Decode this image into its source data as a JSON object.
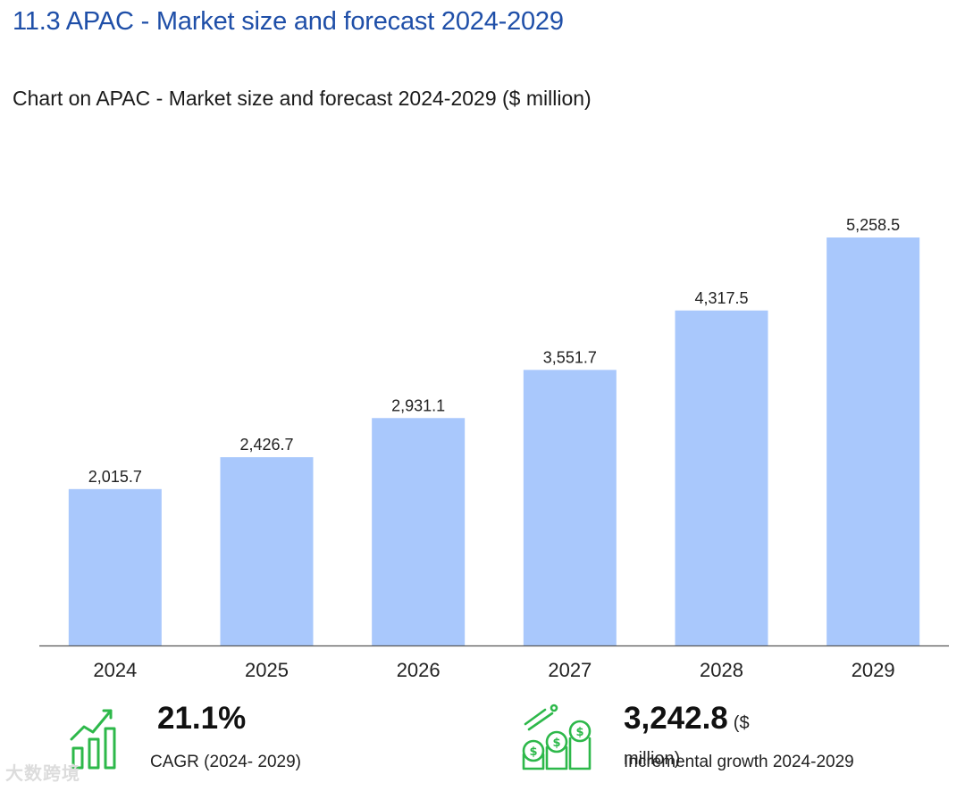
{
  "section_title": "11.3 APAC - Market size and forecast 2024-2029",
  "chart_title": "Chart on APAC - Market size and forecast 2024-2029 ($ million)",
  "chart_data": {
    "type": "bar",
    "title": "Chart on APAC - Market size and forecast 2024-2029 ($ million)",
    "categories": [
      "2024",
      "2025",
      "2026",
      "2027",
      "2028",
      "2029"
    ],
    "values": [
      2015.7,
      2426.7,
      2931.1,
      3551.7,
      4317.5,
      5258.5
    ],
    "value_labels": [
      "2,015.7",
      "2,426.7",
      "2,931.1",
      "3,551.7",
      "4,317.5",
      "5,258.5"
    ],
    "ylabel": "$ million",
    "ylim": [
      0,
      5258.5
    ],
    "bar_color": "#a9c8fc",
    "grid": false
  },
  "kpis": {
    "cagr": {
      "value": "21.1%",
      "caption": "CAGR (2024- 2029)",
      "icon": "growth-bars-icon"
    },
    "growth": {
      "value": "3,242.8",
      "unit": "($ million)",
      "caption": "Incremental growth 2024-2029",
      "icon": "money-coins-icon"
    }
  },
  "watermark": "大数跨境",
  "colors": {
    "title": "#1f4fa8",
    "icon_green": "#2db84a"
  }
}
